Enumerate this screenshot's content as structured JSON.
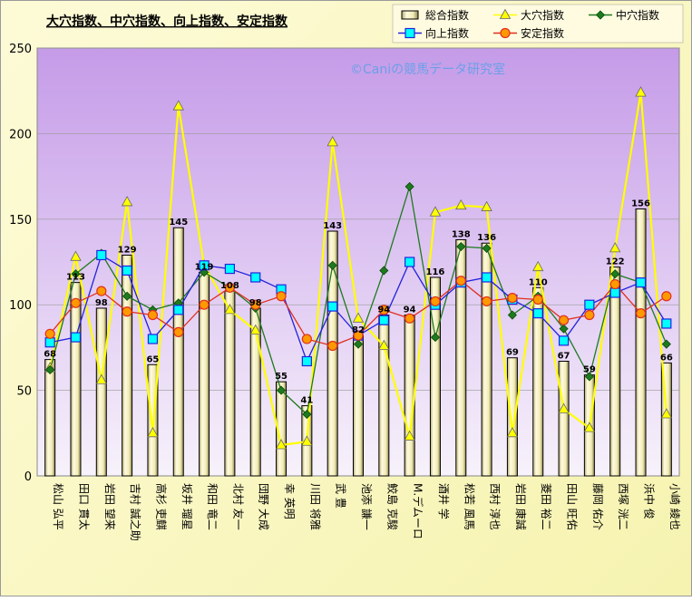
{
  "chart_data": {
    "type": "bar",
    "title": "大穴指数、中穴指数、向上指数、安定指数",
    "watermark": "©Caniの競馬データ研究室",
    "ylim": [
      0,
      250
    ],
    "yticks": [
      "0",
      "50",
      "100",
      "150",
      "200",
      "250"
    ],
    "grid": true,
    "legend_position": "top-right",
    "categories": [
      "松山 弘平",
      "田口 貫太",
      "岩田 望来",
      "吉村 誠之助",
      "高杉 吏麒",
      "坂井 瑠星",
      "和田 竜二",
      "北村 友一",
      "団野 大成",
      "幸 英明",
      "川田 将雅",
      "武 豊",
      "池添 謙一",
      "鮫島 克駿",
      "M.デムーロ",
      "酒井 学",
      "松若 風馬",
      "西村 淳也",
      "岩田 康誠",
      "菱田 裕二",
      "田山 旺佑",
      "藤岡 佑介",
      "西塚 洸二",
      "浜中 俊",
      "小崎 綾也"
    ],
    "series": [
      {
        "name": "総合指数",
        "kind": "bar",
        "color": "#f2ecb6",
        "values": [
          68,
          113,
          98,
          129,
          65,
          145,
          119,
          108,
          98,
          55,
          41,
          143,
          82,
          94,
          94,
          116,
          138,
          136,
          69,
          110,
          67,
          59,
          122,
          156,
          66
        ]
      },
      {
        "name": "大穴指数",
        "kind": "line",
        "color": "#ffff00",
        "marker": "triangle",
        "values": [
          63,
          128,
          56,
          160,
          25,
          216,
          123,
          97,
          85,
          18,
          20,
          195,
          92,
          76,
          23,
          154,
          158,
          157,
          25,
          122,
          39,
          28,
          133,
          224,
          36
        ]
      },
      {
        "name": "中穴指数",
        "kind": "line",
        "color": "#1e7a1e",
        "marker": "diamond",
        "values": [
          62,
          118,
          130,
          105,
          97,
          101,
          119,
          110,
          98,
          50,
          36,
          123,
          77,
          120,
          169,
          81,
          134,
          133,
          94,
          105,
          86,
          58,
          118,
          113,
          77
        ]
      },
      {
        "name": "向上指数",
        "kind": "line",
        "color": "#2222dd",
        "marker": "square",
        "values": [
          78,
          81,
          129,
          120,
          80,
          97,
          123,
          121,
          116,
          109,
          67,
          99,
          82,
          91,
          125,
          100,
          113,
          116,
          103,
          95,
          79,
          100,
          107,
          113,
          89
        ]
      },
      {
        "name": "安定指数",
        "kind": "line",
        "color": "#e03020",
        "marker": "circle",
        "values": [
          83,
          101,
          108,
          96,
          94,
          84,
          100,
          110,
          100,
          105,
          80,
          76,
          82,
          97,
          92,
          102,
          114,
          102,
          104,
          103,
          91,
          94,
          112,
          95,
          105
        ]
      }
    ]
  }
}
